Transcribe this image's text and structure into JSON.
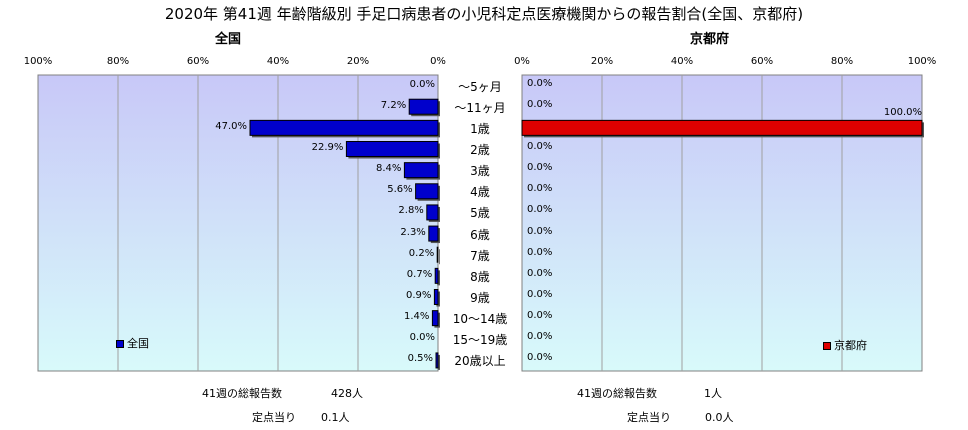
{
  "title": "2020年 第41週 年齢階級別 手足口病患者の小児科定点医療機関からの報告割合(全国、京都府)",
  "colors": {
    "national_bar": "#0000cc",
    "kyoto_bar": "#dd0000",
    "plot_top": "#c8c8f8",
    "plot_bottom": "#d8fafa"
  },
  "chart_data": [
    {
      "type": "bar",
      "orientation": "horizontal",
      "direction": "right-to-left",
      "title": "全国",
      "xlim": [
        0,
        100
      ],
      "xticks": [
        "100%",
        "80%",
        "60%",
        "40%",
        "20%",
        "0%"
      ],
      "categories": [
        "～5ヶ月",
        "～11ヶ月",
        "1歳",
        "2歳",
        "3歳",
        "4歳",
        "5歳",
        "6歳",
        "7歳",
        "8歳",
        "9歳",
        "10～14歳",
        "15～19歳",
        "20歳以上"
      ],
      "series": [
        {
          "name": "全国",
          "values": [
            0.0,
            7.2,
            47.0,
            22.9,
            8.4,
            5.6,
            2.8,
            2.3,
            0.2,
            0.7,
            0.9,
            1.4,
            0.0,
            0.5
          ],
          "labels": [
            "0.0%",
            "7.2%",
            "47.0%",
            "22.9%",
            "8.4%",
            "5.6%",
            "2.8%",
            "2.3%",
            "0.2%",
            "0.7%",
            "0.9%",
            "1.4%",
            "0.0%",
            "0.5%"
          ]
        }
      ],
      "legend": "bottom-left",
      "grid": true
    },
    {
      "type": "bar",
      "orientation": "horizontal",
      "direction": "left-to-right",
      "title": "京都府",
      "xlim": [
        0,
        100
      ],
      "xticks": [
        "0%",
        "20%",
        "40%",
        "60%",
        "80%",
        "100%"
      ],
      "categories": [
        "～5ヶ月",
        "～11ヶ月",
        "1歳",
        "2歳",
        "3歳",
        "4歳",
        "5歳",
        "6歳",
        "7歳",
        "8歳",
        "9歳",
        "10～14歳",
        "15～19歳",
        "20歳以上"
      ],
      "series": [
        {
          "name": "京都府",
          "values": [
            0.0,
            0.0,
            100.0,
            0.0,
            0.0,
            0.0,
            0.0,
            0.0,
            0.0,
            0.0,
            0.0,
            0.0,
            0.0,
            0.0
          ],
          "labels": [
            "0.0%",
            "0.0%",
            "100.0%",
            "0.0%",
            "0.0%",
            "0.0%",
            "0.0%",
            "0.0%",
            "0.0%",
            "0.0%",
            "0.0%",
            "0.0%",
            "0.0%",
            "0.0%"
          ]
        }
      ],
      "legend": "bottom-right",
      "grid": true
    }
  ],
  "footer": {
    "national_total_label": "41週の総報告数",
    "national_total_value": "428人",
    "national_per_label": "定点当り",
    "national_per_value": "0.1人",
    "kyoto_total_label": "41週の総報告数",
    "kyoto_total_value": "1人",
    "kyoto_per_label": "定点当り",
    "kyoto_per_value": "0.0人"
  }
}
